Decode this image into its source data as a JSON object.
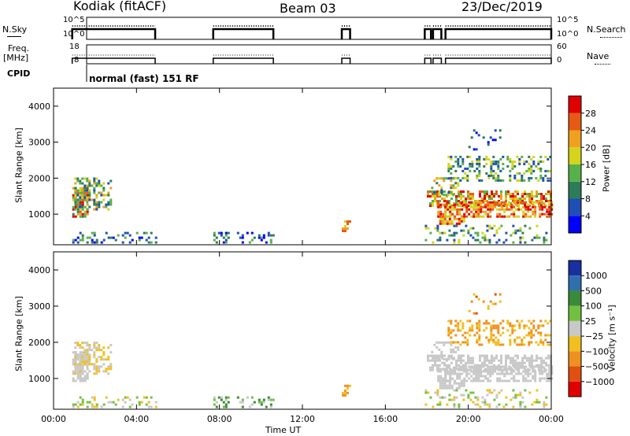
{
  "header": {
    "station": "Kodiak (fitACF)",
    "beam": "Beam 03",
    "date": "23/Dec/2019"
  },
  "left_labels": {
    "nsky": "N.Sky",
    "freq": "Freq.",
    "mhz": "[MHz]",
    "cpid": "CPID"
  },
  "right_labels": {
    "nsearch": "N.Search",
    "nave": "Nave"
  },
  "mini_axes": {
    "nsky_top": "10^5",
    "nsky_bot": "10^0",
    "freq_top": "18",
    "freq_bot": "8",
    "right1_top": "10^5",
    "right1_bot": "10^0",
    "right2_top": "60",
    "right2_bot": "0"
  },
  "cpid_text": "normal (fast) 151 RF",
  "chart_data": [
    {
      "type": "heatmap",
      "ylabel": "Slant Range [km]",
      "xlabel": "",
      "ylim": [
        150,
        4500
      ],
      "y_ticks": [
        "1000",
        "2000",
        "3000",
        "4000"
      ],
      "colorbar": {
        "label": "Power [dB]",
        "ticks": [
          "4",
          "8",
          "12",
          "16",
          "20",
          "24",
          "28"
        ],
        "range": [
          0,
          32
        ],
        "colors": [
          "#0000ff",
          "#1f4fb4",
          "#2e7b5a",
          "#56b14a",
          "#d4d41c",
          "#f0a020",
          "#e65a14",
          "#e00000"
        ]
      }
    },
    {
      "type": "heatmap",
      "ylabel": "Slant Range [km]",
      "xlabel": "Time UT",
      "ylim": [
        150,
        4500
      ],
      "y_ticks": [
        "1000",
        "2000",
        "3000",
        "4000"
      ],
      "x_ticks": [
        "00:00",
        "04:00",
        "08:00",
        "12:00",
        "16:00",
        "20:00",
        "00:00"
      ],
      "x_range_hours": [
        0,
        24
      ],
      "colorbar": {
        "label": "Velocity [m s⁻¹]",
        "ticks": [
          "1000",
          "500",
          "100",
          "25",
          "−25",
          "−100",
          "−500",
          "−1000"
        ],
        "colors": [
          "#1a2fa0",
          "#2f6fb0",
          "#3a8a3a",
          "#72c040",
          "#c8c8c8",
          "#f0c020",
          "#f09020",
          "#e05010",
          "#e00000"
        ]
      }
    }
  ]
}
